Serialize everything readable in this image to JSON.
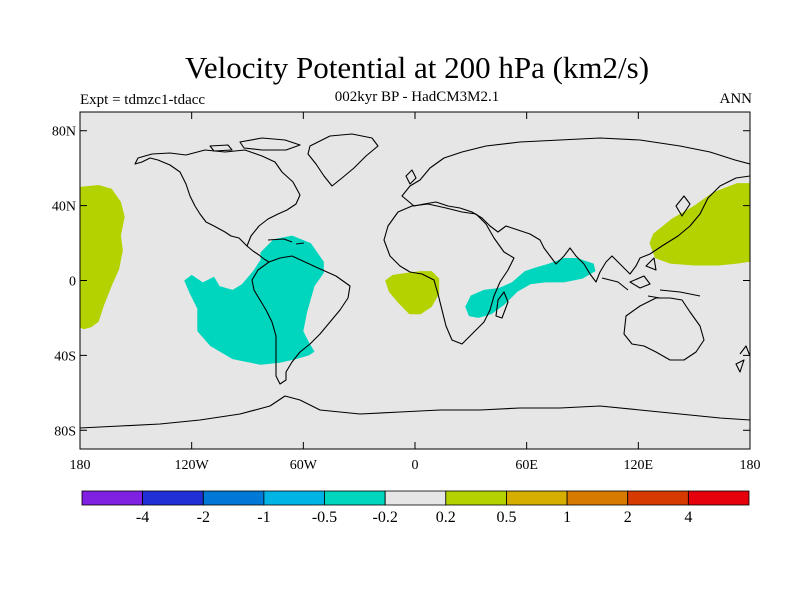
{
  "title": "Velocity Potential at 200 hPa (km2/s)",
  "subtitle": "002kyr BP - HadCM3M2.1",
  "experiment": "Expt = tdmzc1-tdacc",
  "season": "ANN",
  "map": {
    "projection": "cylindrical-equidistant",
    "lon_range": [
      -180,
      180
    ],
    "lat_range": [
      -90,
      90
    ],
    "background_color": "#e6e6e6",
    "coastline_color": "#000000",
    "lat_ticks": [
      {
        "value": 80,
        "label": "80N"
      },
      {
        "value": 40,
        "label": "40N"
      },
      {
        "value": 0,
        "label": "0"
      },
      {
        "value": -40,
        "label": "40S"
      },
      {
        "value": -80,
        "label": "80S"
      }
    ],
    "lon_ticks": [
      {
        "value": -180,
        "label": "180"
      },
      {
        "value": -120,
        "label": "120W"
      },
      {
        "value": -60,
        "label": "60W"
      },
      {
        "value": 0,
        "label": "0"
      },
      {
        "value": 60,
        "label": "60E"
      },
      {
        "value": 120,
        "label": "120E"
      },
      {
        "value": 180,
        "label": "180"
      }
    ],
    "regions": [
      {
        "name": "central-pacific-positive",
        "category": "0.2 to 0.5",
        "color": "#b4d200",
        "outline": [
          [
            -180,
            50
          ],
          [
            -170,
            51
          ],
          [
            -163,
            49
          ],
          [
            -158,
            42
          ],
          [
            -156,
            34
          ],
          [
            -158,
            24
          ],
          [
            -157,
            16
          ],
          [
            -159,
            6
          ],
          [
            -163,
            -3
          ],
          [
            -167,
            -13
          ],
          [
            -170,
            -22
          ],
          [
            -174,
            -25
          ],
          [
            -178,
            -26
          ],
          [
            -180,
            -25
          ]
        ]
      },
      {
        "name": "west-pacific-positive",
        "category": "0.2 to 0.5",
        "color": "#b4d200",
        "outline": [
          [
            180,
            52
          ],
          [
            173,
            52
          ],
          [
            160,
            47
          ],
          [
            150,
            40
          ],
          [
            138,
            33
          ],
          [
            128,
            25
          ],
          [
            126,
            20
          ],
          [
            129,
            12
          ],
          [
            137,
            9
          ],
          [
            150,
            8
          ],
          [
            163,
            8
          ],
          [
            173,
            9
          ],
          [
            180,
            10
          ]
        ]
      },
      {
        "name": "atlantic-positive",
        "category": "0.2 to 0.5",
        "color": "#b4d200",
        "outline": [
          [
            -12,
            3
          ],
          [
            -5,
            4
          ],
          [
            3,
            5
          ],
          [
            9,
            5
          ],
          [
            13,
            1
          ],
          [
            13,
            -7
          ],
          [
            9,
            -14
          ],
          [
            3,
            -18
          ],
          [
            -3,
            -18
          ],
          [
            -9,
            -12
          ],
          [
            -14,
            -6
          ],
          [
            -16,
            0
          ]
        ]
      },
      {
        "name": "south-america-negative",
        "category": "-0.5 to -0.2",
        "color": "#00d6bd",
        "outline": [
          [
            -83,
            15
          ],
          [
            -76,
            22
          ],
          [
            -66,
            24
          ],
          [
            -56,
            20
          ],
          [
            -49,
            10
          ],
          [
            -49,
            4
          ],
          [
            -54,
            -3
          ],
          [
            -58,
            -17
          ],
          [
            -60,
            -27
          ],
          [
            -57,
            -33
          ],
          [
            -54,
            -38
          ],
          [
            -57,
            -40
          ],
          [
            -64,
            -42
          ],
          [
            -73,
            -44
          ],
          [
            -83,
            -45
          ],
          [
            -98,
            -42
          ],
          [
            -110,
            -35
          ],
          [
            -117,
            -27
          ],
          [
            -117,
            -15
          ],
          [
            -121,
            -7
          ],
          [
            -124,
            0
          ],
          [
            -120,
            3
          ],
          [
            -114,
            -1
          ],
          [
            -108,
            2
          ],
          [
            -105,
            -3
          ],
          [
            -98,
            -5
          ],
          [
            -93,
            -2
          ],
          [
            -87,
            5
          ],
          [
            -83,
            11
          ]
        ]
      },
      {
        "name": "indian-ocean-negative",
        "category": "-0.5 to -0.2",
        "color": "#00d6bd",
        "outline": [
          [
            30,
            -8
          ],
          [
            37,
            -5
          ],
          [
            45,
            -4
          ],
          [
            52,
            -1
          ],
          [
            59,
            5
          ],
          [
            65,
            7
          ],
          [
            72,
            9
          ],
          [
            80,
            12
          ],
          [
            87,
            12
          ],
          [
            96,
            9
          ],
          [
            97,
            5
          ],
          [
            90,
            1
          ],
          [
            80,
            -1
          ],
          [
            70,
            -1
          ],
          [
            62,
            -2
          ],
          [
            55,
            -6
          ],
          [
            48,
            -13
          ],
          [
            41,
            -18
          ],
          [
            34,
            -20
          ],
          [
            29,
            -19
          ],
          [
            27,
            -14
          ]
        ]
      }
    ]
  },
  "colorbar": {
    "colors": [
      "#8020e0",
      "#2030d6",
      "#0078d6",
      "#00b4e6",
      "#00d6bd",
      "#e6e6e6",
      "#b4d200",
      "#d6ae00",
      "#d67a00",
      "#d63a00",
      "#e6000c"
    ],
    "labels": [
      "-4",
      "-2",
      "-1",
      "-0.5",
      "-0.2",
      "0.2",
      "0.5",
      "1",
      "2",
      "4"
    ]
  }
}
